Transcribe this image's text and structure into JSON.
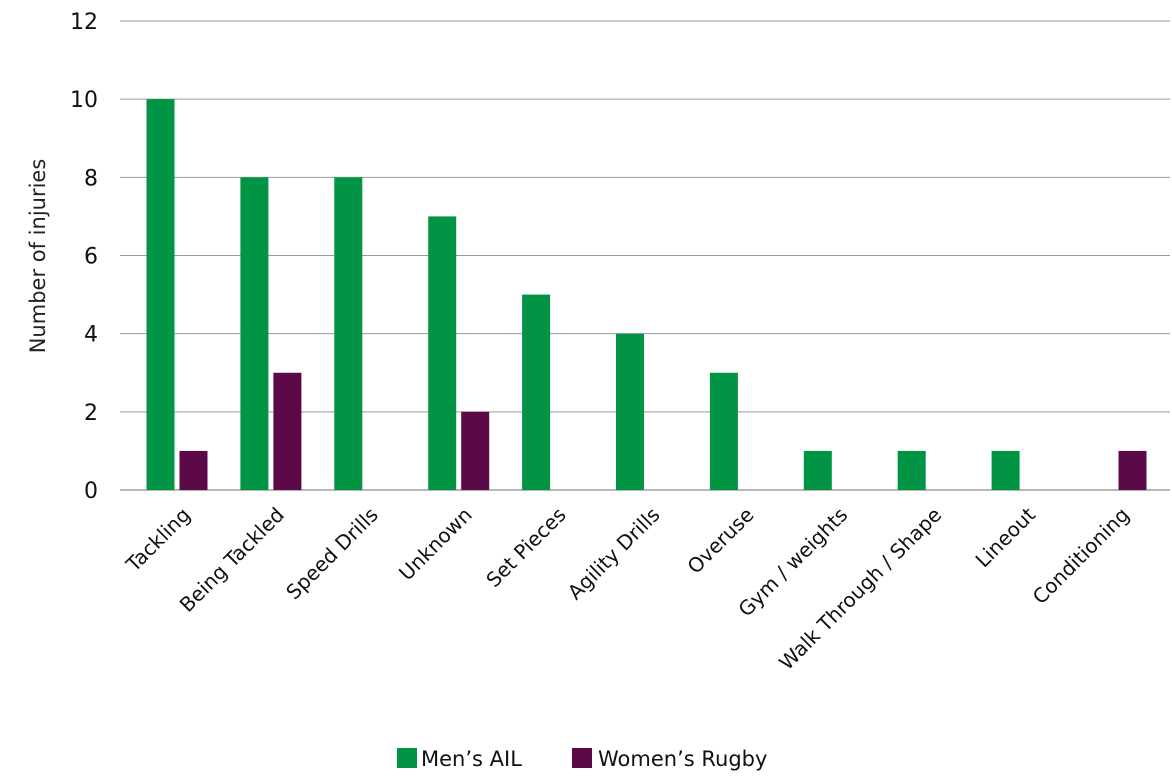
{
  "chart_data": {
    "type": "bar",
    "title": "",
    "xlabel": "",
    "ylabel": "Number of injuries",
    "ylim": [
      0,
      12
    ],
    "yticks": [
      0,
      2,
      4,
      6,
      8,
      10,
      12
    ],
    "grid": true,
    "legend_position": "bottom-center",
    "categories": [
      "Tackling",
      "Being Tackled",
      "Speed Drills",
      "Unknown",
      "Set Pieces",
      "Agility Drills",
      "Overuse",
      "Gym / weights",
      "Walk Through / Shape",
      "Lineout",
      "Conditioning"
    ],
    "series": [
      {
        "name": "Men’s AIL",
        "color": "#009444",
        "values": [
          10,
          8,
          8,
          7,
          5,
          4,
          3,
          1,
          1,
          1,
          0
        ]
      },
      {
        "name": "Women’s Rugby",
        "color": "#5c0a47",
        "values": [
          1,
          3,
          0,
          2,
          0,
          0,
          0,
          0,
          0,
          0,
          1
        ]
      }
    ]
  }
}
